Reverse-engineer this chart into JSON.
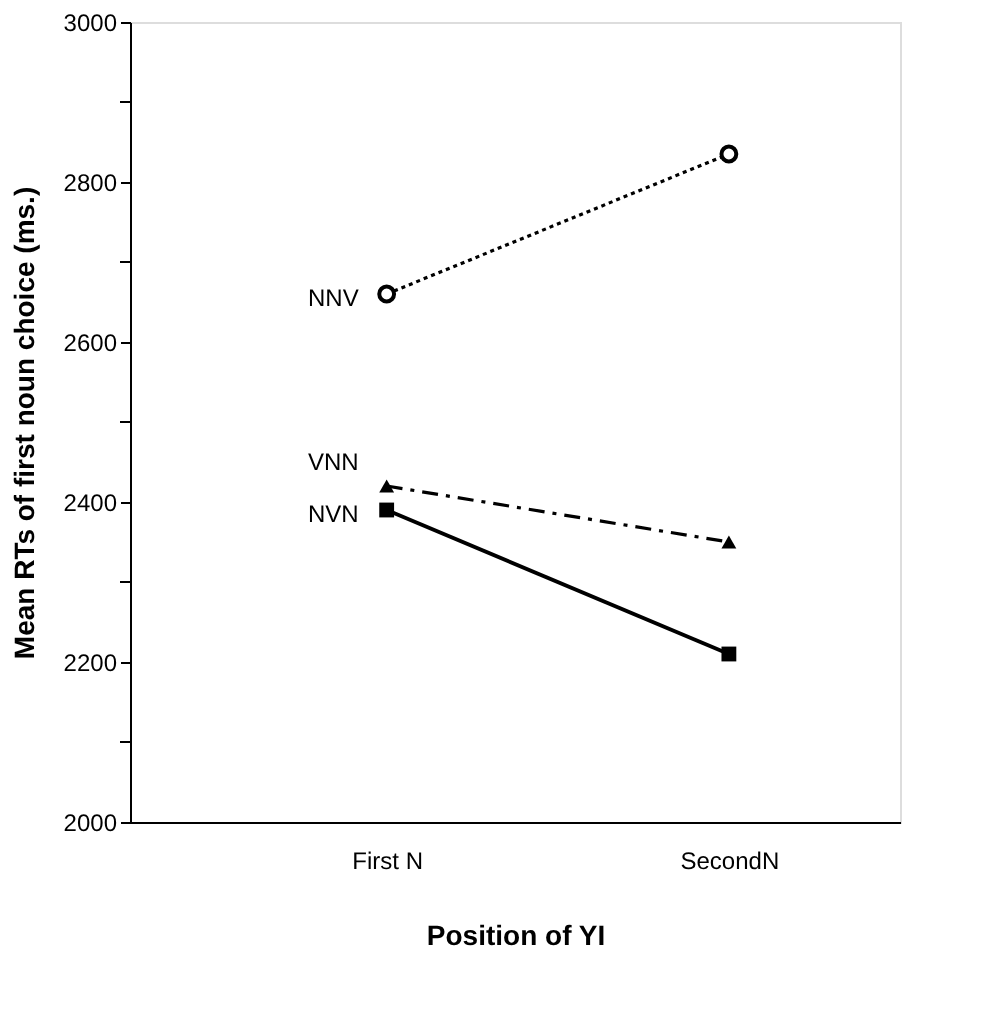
{
  "chart_data": {
    "type": "line",
    "xlabel": "Position of YI",
    "ylabel": "Mean RTs of first noun choice (ms.)",
    "categories": [
      "First N",
      "SecondN"
    ],
    "series": [
      {
        "name": "NNV",
        "color": "#000000",
        "values": [
          2660,
          2835
        ],
        "marker": "circle",
        "line_style": "dotted"
      },
      {
        "name": "VNN",
        "color": "#000000",
        "values": [
          2420,
          2350
        ],
        "marker": "triangle",
        "line_style": "dashed"
      },
      {
        "name": "NVN",
        "color": "#000000",
        "values": [
          2390,
          2210
        ],
        "marker": "square",
        "line_style": "solid"
      }
    ],
    "ylim": [
      2000,
      3000
    ],
    "yticks": [
      2000,
      {
        "value": 2100,
        "label": null
      },
      2200,
      {
        "value": 2300,
        "label": null
      },
      2400,
      {
        "value": 2500,
        "label": null
      },
      2600,
      {
        "value": 2700,
        "label": null
      },
      2800,
      {
        "value": 2900,
        "label": null
      },
      3000
    ],
    "grid": false
  }
}
